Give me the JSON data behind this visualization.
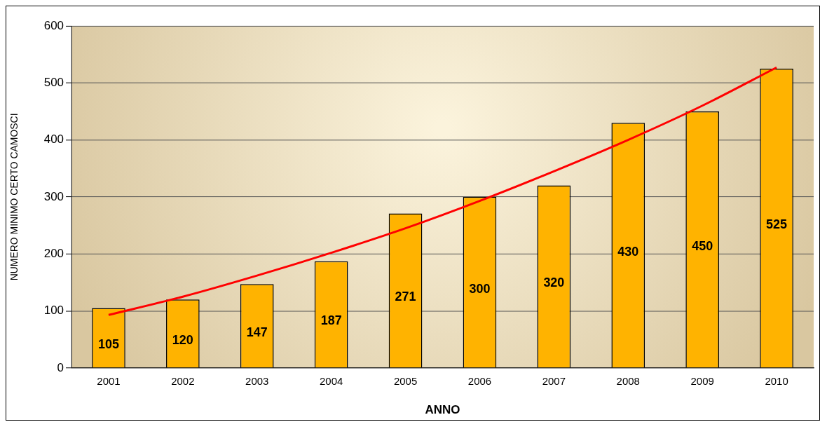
{
  "chart_data": {
    "type": "bar",
    "xlabel": "ANNO",
    "ylabel": "NUMERO MINIMO CERTO CAMOSCI",
    "categories": [
      "2001",
      "2002",
      "2003",
      "2004",
      "2005",
      "2006",
      "2007",
      "2008",
      "2009",
      "2010"
    ],
    "series": [
      {
        "color": "#ffb300",
        "values": [
          105,
          120,
          147,
          187,
          271,
          300,
          320,
          430,
          450,
          525
        ],
        "value_labels": [
          "105",
          "120",
          "147",
          "187",
          "271",
          "300",
          "320",
          "430",
          "450",
          "525"
        ]
      },
      {
        "type": "line",
        "color": "#ff0000",
        "values": [
          93,
          125,
          162,
          202,
          245,
          293,
          345,
          400,
          460,
          527
        ]
      }
    ],
    "ylim": [
      0,
      600
    ],
    "yticks": [
      0,
      100,
      200,
      300,
      400,
      500,
      600
    ],
    "grid": "y",
    "legend": false,
    "marker": "none"
  }
}
